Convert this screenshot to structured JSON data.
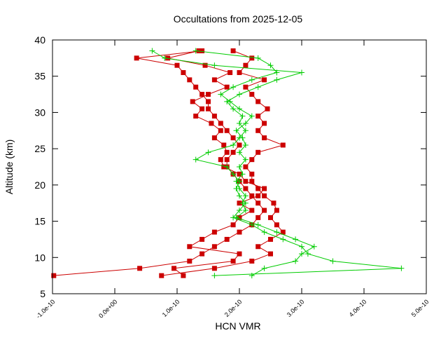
{
  "chart_data": {
    "type": "line",
    "title": "Occultations from 2025-12-05",
    "x_label": "HCN VMR",
    "y_label": "Altitude (km)",
    "xlim": [
      -1e-10,
      5e-10
    ],
    "ylim": [
      5,
      40
    ],
    "xticks": [
      {
        "value": -1e-10,
        "label": "-1.0e-10"
      },
      {
        "value": 0,
        "label": "0.0e+00"
      },
      {
        "value": 1e-10,
        "label": "1.0e-10"
      },
      {
        "value": 2e-10,
        "label": "2.0e-10"
      },
      {
        "value": 3e-10,
        "label": "3.0e-10"
      },
      {
        "value": 4e-10,
        "label": "4.0e-10"
      },
      {
        "value": 5e-10,
        "label": "5.0e-10"
      }
    ],
    "yticks": [
      5,
      10,
      15,
      20,
      25,
      30,
      35,
      40
    ],
    "y": [
      7.5,
      8.5,
      9.5,
      10.5,
      11.5,
      12.5,
      13.5,
      14.5,
      15.5,
      16.5,
      17.5,
      18.5,
      19.5,
      20.5,
      21.5,
      22.5,
      23.5,
      24.5,
      25.5,
      26.5,
      27.5,
      28.5,
      29.5,
      30.5,
      31.5,
      32.5,
      33.5,
      34.5,
      35.5,
      36.5,
      37.5,
      38.5
    ],
    "series": [
      {
        "color": "#cc0000",
        "marker": "square",
        "values": [
          -9.8e-11,
          4e-11,
          1.2e-10,
          1.4e-10,
          1.6e-10,
          1.8e-10,
          2e-10,
          2.2e-10,
          2.3e-10,
          2.4e-10,
          2.3e-10,
          2.2e-10,
          2.1e-10,
          2e-10,
          1.9e-10,
          1.8e-10,
          1.8e-10,
          1.9e-10,
          2e-10,
          1.9e-10,
          1.8e-10,
          1.7e-10,
          1.6e-10,
          1.5e-10,
          1.5e-10,
          1.4e-10,
          1.3e-10,
          1.2e-10,
          1.1e-10,
          1e-10,
          3.5e-11,
          1.4e-10
        ]
      },
      {
        "color": "#cc0000",
        "marker": "square",
        "values": [
          7.5e-11,
          1.6e-10,
          2.2e-10,
          2.5e-10,
          2.3e-10,
          2.5e-10,
          2.7e-10,
          2.6e-10,
          2.5e-10,
          2.6e-10,
          2.55e-10,
          2.4e-10,
          2.3e-10,
          2.2e-10,
          2.2e-10,
          2.1e-10,
          2.2e-10,
          2.3e-10,
          2.7e-10,
          2.4e-10,
          2.3e-10,
          2.4e-10,
          2.3e-10,
          2.45e-10,
          2.3e-10,
          2.2e-10,
          2.1e-10,
          2.4e-10,
          2e-10,
          2.1e-10,
          2.2e-10,
          1.9e-10
        ]
      },
      {
        "color": "#cc0000",
        "marker": "square",
        "values": [
          1.1e-10,
          9.5e-11,
          1.9e-10,
          2e-10,
          1.2e-10,
          1.4e-10,
          1.6e-10,
          1.9e-10,
          2e-10,
          2.2e-10,
          2e-10,
          2.3e-10,
          2.4e-10,
          2.1e-10,
          2e-10,
          1.75e-10,
          1.7e-10,
          1.8e-10,
          1.75e-10,
          1.6e-10,
          1.7e-10,
          1.55e-10,
          1.3e-10,
          1.4e-10,
          1.25e-10,
          1.5e-10,
          1.8e-10,
          1.6e-10,
          1.85e-10,
          1.45e-10,
          8.5e-11,
          1.35e-10
        ]
      },
      {
        "color": "#00cc00",
        "marker": "plus",
        "values": [
          1.6e-10,
          4.6e-10,
          3.5e-10,
          3.1e-10,
          3e-10,
          2.7e-10,
          2.4e-10,
          2.2e-10,
          1.9e-10,
          2e-10,
          2.1e-10,
          2e-10,
          1.95e-10,
          2e-10,
          1.9e-10,
          1.8e-10,
          1.3e-10,
          1.5e-10,
          1.9e-10,
          2e-10,
          2.1e-10,
          2e-10,
          2.05e-10,
          1.9e-10,
          1.8e-10,
          2e-10,
          2.3e-10,
          2.6e-10,
          3e-10,
          1.6e-10,
          8e-11,
          6e-11
        ]
      },
      {
        "color": "#00cc00",
        "marker": "plus",
        "values": [
          2.2e-10,
          2.4e-10,
          2.9e-10,
          3e-10,
          3.2e-10,
          2.9e-10,
          2.6e-10,
          2.3e-10,
          1.95e-10,
          2.1e-10,
          2.05e-10,
          2.1e-10,
          2e-10,
          1.95e-10,
          2.05e-10,
          2e-10,
          2.1e-10,
          2e-10,
          2.1e-10,
          2.05e-10,
          1.95e-10,
          2.1e-10,
          2.2e-10,
          2e-10,
          1.85e-10,
          1.7e-10,
          1.9e-10,
          2.2e-10,
          2.6e-10,
          2.5e-10,
          2.3e-10,
          1.3e-10
        ]
      }
    ]
  }
}
